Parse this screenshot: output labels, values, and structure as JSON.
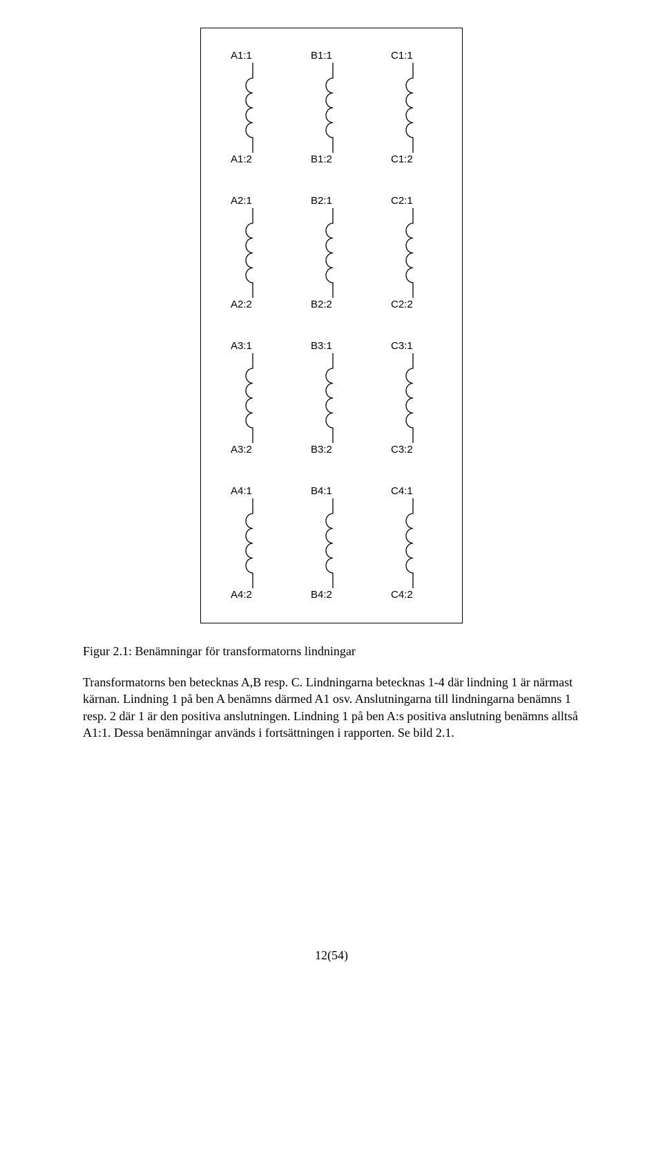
{
  "figure": {
    "rows": 4,
    "cols": 3,
    "col_letters": [
      "A",
      "B",
      "C"
    ],
    "row_numbers": [
      1,
      2,
      3,
      4
    ],
    "terminal_top_suffix": ":1",
    "terminal_bot_suffix": ":2",
    "inductor": {
      "lead_len": 22,
      "arc_count": 4,
      "arc_radius": 10,
      "stroke": "#000000",
      "stroke_width": 1.3,
      "width": 40,
      "height": 130
    },
    "border_color": "#000000",
    "background_color": "#ffffff",
    "label_fontsize": 15,
    "label_font": "Arial"
  },
  "caption": "Figur 2.1: Benämningar för transformatorns lindningar",
  "body": "Transformatorns ben betecknas A,B resp. C. Lindningarna betecknas 1-4 där lindning 1 är närmast kärnan. Lindning 1 på ben A benämns därmed A1 osv. Anslutningarna till lindningarna benämns 1 resp. 2 där 1 är den positiva anslutningen. Lindning 1 på ben A:s positiva anslutning benämns alltså A1:1. Dessa benämningar används i fortsättningen i rapporten. Se bild 2.1.",
  "page_number": "12(54)"
}
